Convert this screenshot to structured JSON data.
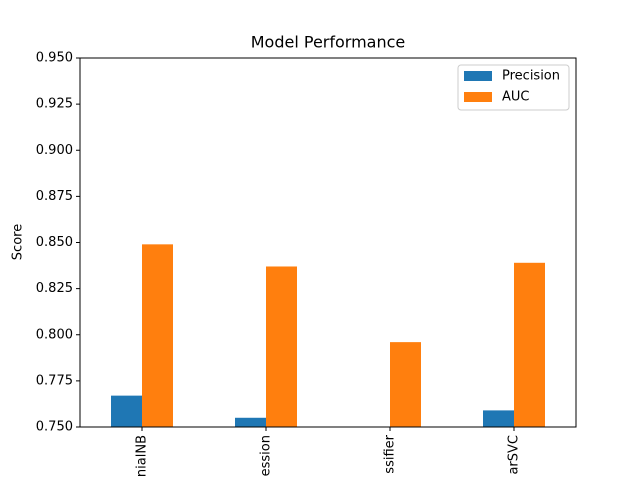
{
  "chart_data": {
    "type": "bar",
    "title": "Model Performance",
    "y_label": "Score",
    "categories": [
      "nialNB",
      "ession",
      "ssifier",
      "arSVC"
    ],
    "series": [
      {
        "name": "Precision",
        "color": "#1f77b4",
        "values": [
          0.767,
          0.755,
          0.75,
          0.759
        ]
      },
      {
        "name": "AUC",
        "color": "#ff7f0e",
        "values": [
          0.849,
          0.837,
          0.796,
          0.839
        ]
      }
    ],
    "ylim": [
      0.75,
      0.95
    ],
    "yticks": [
      {
        "value": 0.75,
        "label": "0.750"
      },
      0.775,
      {
        "value": 0.8,
        "label": "0.800"
      },
      0.825,
      {
        "value": 0.85,
        "label": "0.850"
      },
      0.875,
      {
        "value": 0.9,
        "label": "0.900"
      },
      0.925,
      {
        "value": 0.95,
        "label": "0.950"
      }
    ],
    "legend": "upper right"
  }
}
